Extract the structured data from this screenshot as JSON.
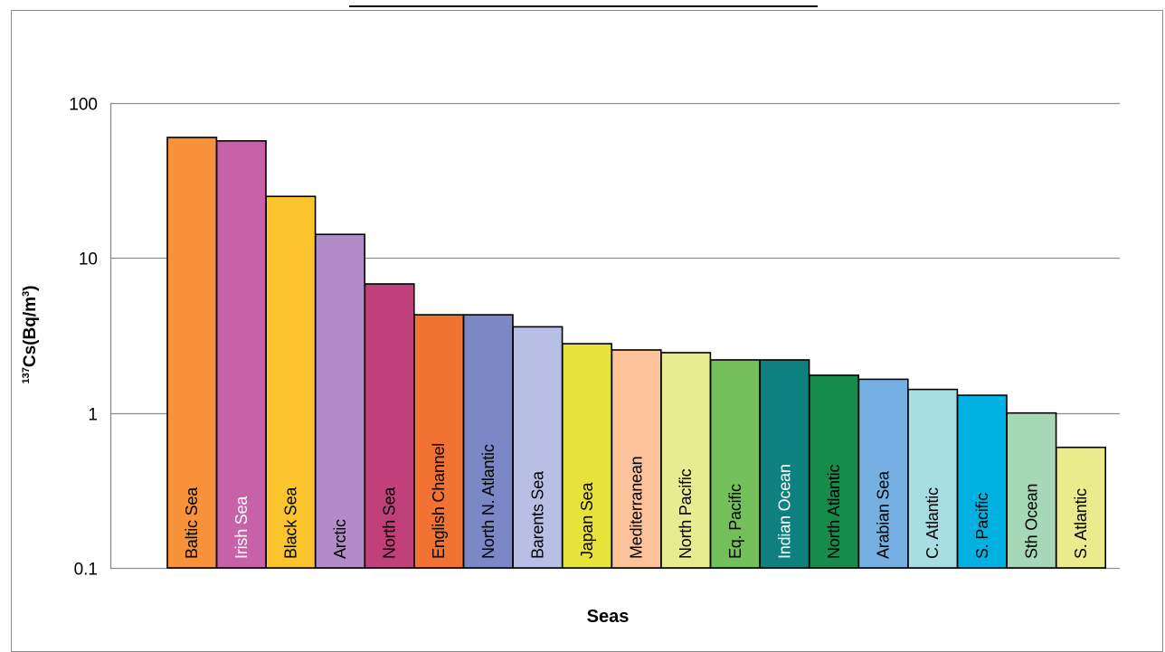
{
  "chart_data": {
    "type": "bar",
    "title": "",
    "xlabel": "Seas",
    "ylabel": {
      "superscript": "137",
      "main": "Cs(Bq/m",
      "unit_superscript": "3",
      "close": ")"
    },
    "yscale": "log",
    "ylim": [
      0.1,
      100
    ],
    "yticks": [
      0.1,
      1,
      10,
      100
    ],
    "ytick_labels": [
      "0.1",
      "1",
      "10",
      "100"
    ],
    "grid": true,
    "legend": "none",
    "categories": [
      "Baltic Sea",
      "Irish Sea",
      "Black Sea",
      "Arctic",
      "North Sea",
      "English Channel",
      "North N. Atlantic",
      "Barents Sea",
      "Japan Sea",
      "Mediterranean",
      "North Pacific",
      "Eq. Pacific",
      "Indian Ocean",
      "North Atlantic",
      "Arabian Sea",
      "C. Atlantic",
      "S. Pacific",
      "Sth Ocean",
      "S. Atlantic"
    ],
    "values": [
      60,
      57,
      25,
      14.2,
      6.8,
      4.3,
      4.3,
      3.6,
      2.8,
      2.55,
      2.45,
      2.2,
      2.2,
      1.75,
      1.65,
      1.42,
      1.3,
      1.0,
      0.6
    ],
    "colors": [
      "#f7923a",
      "#c862a8",
      "#fcc42c",
      "#b18cc8",
      "#c0407c",
      "#f27234",
      "#7b88c6",
      "#b7bfe4",
      "#e8e33a",
      "#fcc39a",
      "#e7ec91",
      "#73c05a",
      "#0e8080",
      "#178c4a",
      "#74b1e2",
      "#a7dde3",
      "#00b0e0",
      "#a6d8b8",
      "#e9eb8d"
    ],
    "label_colors": [
      "#000000",
      "#ffffff",
      "#000000",
      "#000000",
      "#000000",
      "#000000",
      "#000000",
      "#000000",
      "#000000",
      "#000000",
      "#000000",
      "#000000",
      "#ffffff",
      "#000000",
      "#000000",
      "#000000",
      "#000000",
      "#000000",
      "#000000"
    ]
  }
}
